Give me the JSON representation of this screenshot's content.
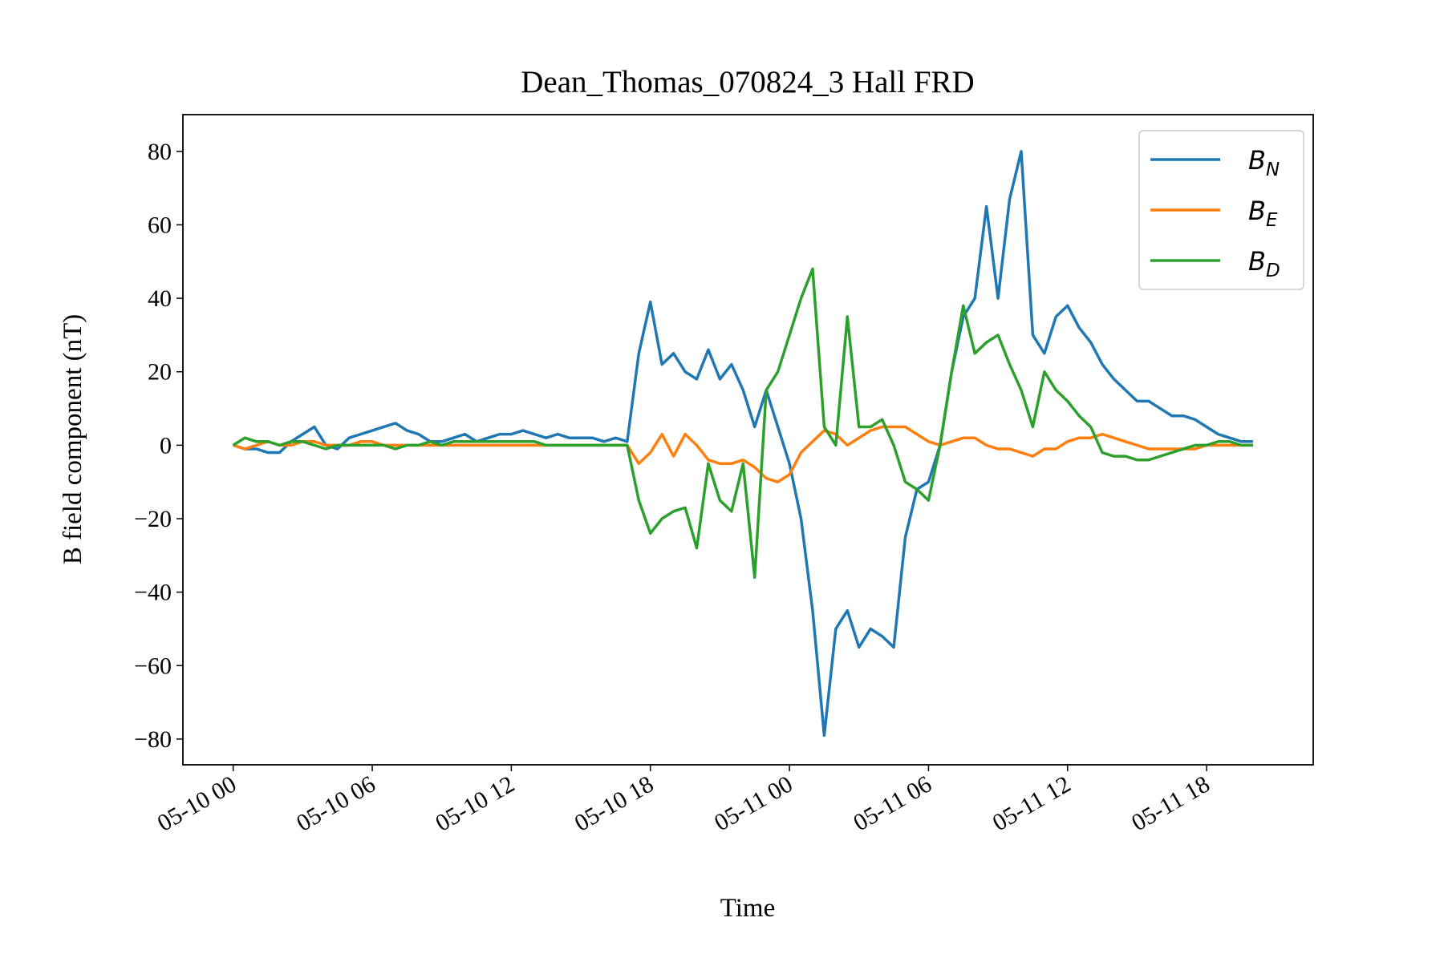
{
  "chart_data": {
    "type": "line",
    "title": "Dean_Thomas_070824_3 Hall FRD",
    "x_label": "Time",
    "y_label": "B field component (nT)",
    "x": [
      0,
      0.5,
      1,
      1.5,
      2,
      2.5,
      3,
      3.5,
      4,
      4.5,
      5,
      5.5,
      6,
      6.5,
      7,
      7.5,
      8,
      8.5,
      9,
      9.5,
      10,
      10.5,
      11,
      11.5,
      12,
      12.5,
      13,
      13.5,
      14,
      14.5,
      15,
      15.5,
      16,
      16.5,
      17,
      17.5,
      18,
      18.5,
      19,
      19.5,
      20,
      20.5,
      21,
      21.5,
      22,
      22.5,
      23,
      23.5,
      24,
      24.5,
      25,
      25.5,
      26,
      26.5,
      27,
      27.5,
      28,
      28.5,
      29,
      29.5,
      30,
      30.5,
      31,
      31.5,
      32,
      32.5,
      33,
      33.5,
      34,
      34.5,
      35,
      35.5,
      36,
      36.5,
      37,
      37.5,
      38,
      38.5,
      39,
      39.5,
      40,
      40.5,
      41,
      41.5,
      42,
      42.5,
      43,
      43.5,
      44
    ],
    "series": [
      {
        "name": "B_N",
        "color": "#1f77b4",
        "values": [
          0,
          -1,
          -1,
          -2,
          -2,
          1,
          3,
          5,
          0,
          -1,
          2,
          3,
          4,
          5,
          6,
          4,
          3,
          1,
          1,
          2,
          3,
          1,
          2,
          3,
          3,
          4,
          3,
          2,
          3,
          2,
          2,
          2,
          1,
          2,
          1,
          25,
          39,
          22,
          25,
          20,
          18,
          26,
          18,
          22,
          15,
          5,
          15,
          5,
          -5,
          -20,
          -45,
          -79,
          -50,
          -45,
          -55,
          -50,
          -52,
          -55,
          -25,
          -12,
          -10,
          0,
          20,
          35,
          40,
          65,
          40,
          67,
          80,
          30,
          25,
          35,
          38,
          32,
          28,
          22,
          18,
          15,
          12,
          12,
          10,
          8,
          8,
          7,
          5,
          3,
          2,
          1,
          1
        ]
      },
      {
        "name": "B_E",
        "color": "#ff7f0e",
        "values": [
          0,
          -1,
          0,
          1,
          0,
          0,
          1,
          1,
          0,
          0,
          0,
          1,
          1,
          0,
          0,
          0,
          0,
          0,
          0,
          0,
          0,
          0,
          0,
          0,
          0,
          0,
          0,
          0,
          0,
          0,
          0,
          0,
          0,
          0,
          0,
          -5,
          -2,
          3,
          -3,
          3,
          0,
          -4,
          -5,
          -5,
          -4,
          -6,
          -9,
          -10,
          -8,
          -2,
          1,
          4,
          3,
          0,
          2,
          4,
          5,
          5,
          5,
          3,
          1,
          0,
          1,
          2,
          2,
          0,
          -1,
          -1,
          -2,
          -3,
          -1,
          -1,
          1,
          2,
          2,
          3,
          2,
          1,
          0,
          -1,
          -1,
          -1,
          -1,
          -1,
          0,
          0,
          0,
          0,
          0
        ]
      },
      {
        "name": "B_D",
        "color": "#2ca02c",
        "values": [
          0,
          2,
          1,
          1,
          0,
          1,
          1,
          0,
          -1,
          0,
          0,
          0,
          0,
          0,
          -1,
          0,
          0,
          1,
          0,
          1,
          1,
          1,
          1,
          1,
          1,
          1,
          1,
          0,
          0,
          0,
          0,
          0,
          0,
          0,
          0,
          -15,
          -24,
          -20,
          -18,
          -17,
          -28,
          -5,
          -15,
          -18,
          -5,
          -36,
          15,
          20,
          30,
          40,
          48,
          5,
          0,
          35,
          5,
          5,
          7,
          0,
          -10,
          -12,
          -15,
          0,
          20,
          38,
          25,
          28,
          30,
          22,
          15,
          5,
          20,
          15,
          12,
          8,
          5,
          -2,
          -3,
          -3,
          -4,
          -4,
          -3,
          -2,
          -1,
          0,
          0,
          1,
          1,
          0,
          0
        ]
      }
    ],
    "xlim": [
      -2.17,
      46.6
    ],
    "xticks": [
      {
        "value": 0,
        "label": "05-10 00"
      },
      {
        "value": 6,
        "label": "05-10 06"
      },
      {
        "value": 12,
        "label": "05-10 12"
      },
      {
        "value": 18,
        "label": "05-10 18"
      },
      {
        "value": 24,
        "label": "05-11 00"
      },
      {
        "value": 30,
        "label": "05-11 06"
      },
      {
        "value": 36,
        "label": "05-11 12"
      },
      {
        "value": 42,
        "label": "05-11 18"
      }
    ],
    "ylim": [
      -87,
      90
    ],
    "yticks": [
      {
        "value": -80,
        "label": "−80"
      },
      {
        "value": -60,
        "label": "−60"
      },
      {
        "value": -40,
        "label": "−40"
      },
      {
        "value": -20,
        "label": "−20"
      },
      0,
      20,
      40,
      60,
      80
    ],
    "grid": false,
    "legend": "upper right"
  }
}
